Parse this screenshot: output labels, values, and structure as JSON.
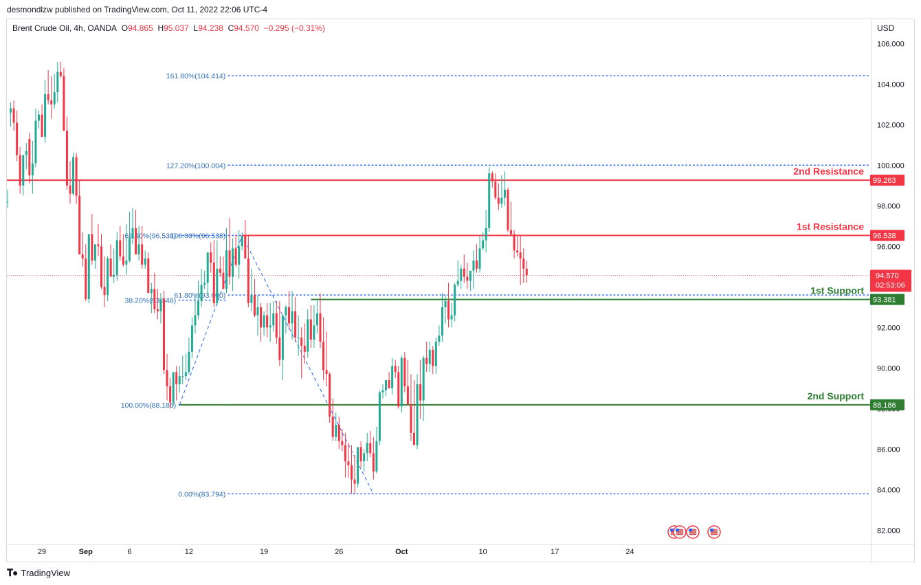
{
  "header": {
    "published": "desmondlzw published on TradingView.com, Oct 11, 2022 22:06 UTC-4",
    "symbol": "Brent Crude Oil, 4h, OANDA",
    "o_label": "O",
    "o_value": "94.865",
    "h_label": "H",
    "h_value": "95.037",
    "l_label": "L",
    "l_value": "94.238",
    "c_label": "C",
    "c_value": "94.570",
    "change": "−0.295 (−0.31%)",
    "currency": "USD"
  },
  "footer": {
    "brand": "TradingView",
    "logo_icon": "tradingview-logo-icon"
  },
  "colors": {
    "up": "#22ab94",
    "down": "#f23645",
    "resistance": "#f23645",
    "support": "#2e7d32",
    "fib": "#2962ff",
    "fib_text": "#2f6fb5",
    "price_line": "#f23645"
  },
  "chart_data": {
    "type": "candlestick",
    "title": "",
    "ylim": [
      81.3,
      107.2
    ],
    "y_ticks": [
      82,
      84,
      86,
      88,
      90,
      92,
      94,
      96,
      98,
      100,
      102,
      104,
      106
    ],
    "y_tick_labels": [
      "82.000",
      "84.000",
      "86.000",
      "88.000",
      "90.000",
      "92.000",
      "94.000",
      "96.000",
      "98.000",
      "100.000",
      "102.000",
      "104.000",
      "106.000"
    ],
    "x_ticks": [
      {
        "label": "29",
        "bar": 11
      },
      {
        "label": "Sep",
        "bar": 25
      },
      {
        "label": "6",
        "bar": 39
      },
      {
        "label": "12",
        "bar": 58
      },
      {
        "label": "19",
        "bar": 82
      },
      {
        "label": "26",
        "bar": 106
      },
      {
        "label": "Oct",
        "bar": 126
      },
      {
        "label": "10",
        "bar": 152
      },
      {
        "label": "17",
        "bar": 175
      },
      {
        "label": "24",
        "bar": 199
      }
    ],
    "candles": {
      "open": [
        98.2,
        102.6,
        102.8,
        102.1,
        100.5,
        99.0,
        100.5,
        101.3,
        99.5,
        100.1,
        102.2,
        102.5,
        101.4,
        103.5,
        103.2,
        103.0,
        103.6,
        104.6,
        104.4,
        101.7,
        99.0,
        98.6,
        100.4,
        98.5,
        95.6,
        95.4,
        93.4,
        96.6,
        95.3,
        96.1,
        96.0,
        94.0,
        93.6,
        95.4,
        94.5,
        94.6,
        96.3,
        95.5,
        95.1,
        95.3,
        96.4,
        96.9,
        95.6,
        96.1,
        95.1,
        95.4,
        93.7,
        93.9,
        92.9,
        92.8,
        93.4,
        89.9,
        89.1,
        88.3,
        89.8,
        89.2,
        89.6,
        89.6,
        89.8,
        90.8,
        92.1,
        92.6,
        93.3,
        94.1,
        94.2,
        95.7,
        95.2,
        93.2,
        94.9,
        94.7,
        93.9,
        95.8,
        94.5,
        95.9,
        95.1,
        96.0,
        96.5,
        95.4,
        93.2,
        93.6,
        92.6,
        93.0,
        92.0,
        92.6,
        92.0,
        92.1,
        92.7,
        91.5,
        90.4,
        92.6,
        93.0,
        92.2,
        92.8,
        91.5,
        91.5,
        91.1,
        90.8,
        92.4,
        91.4,
        92.1,
        92.7,
        91.3,
        89.9,
        89.7,
        87.6,
        86.6,
        87.2,
        86.4,
        86.2,
        85.4,
        85.2,
        84.5,
        84.3,
        86.1,
        85.4,
        85.8,
        86.3,
        85.8,
        84.9,
        86.4,
        88.8,
        88.9,
        89.4,
        89.0,
        90.1,
        89.8,
        88.1,
        90.5,
        89.1,
        88.2,
        86.8,
        86.2,
        89.2,
        88.4,
        90.5,
        90.2,
        90.9,
        90.1,
        91.3,
        91.6,
        93.0,
        93.3,
        92.4,
        92.6,
        94.1,
        94.3,
        94.9,
        94.5,
        94.3,
        94.8,
        95.3,
        94.9,
        95.9,
        96.3,
        96.9,
        99.6,
        99.2,
        98.4,
        98.1,
        98.4,
        98.8,
        96.8,
        96.6,
        95.8,
        95.7,
        95.4,
        94.9
      ],
      "high": [
        98.8,
        103.1,
        103.2,
        102.7,
        100.9,
        99.7,
        101.1,
        101.6,
        101.2,
        102.8,
        102.7,
        103.0,
        104.2,
        104.7,
        104.4,
        104.5,
        105.1,
        105.1,
        104.8,
        102.4,
        100.2,
        100.6,
        100.6,
        99.3,
        96.7,
        96.1,
        96.6,
        97.6,
        96.1,
        97.1,
        96.6,
        95.5,
        95.5,
        96.1,
        95.9,
        96.7,
        97.0,
        96.6,
        97.1,
        97.7,
        97.9,
        97.8,
        97.0,
        97.0,
        95.8,
        95.7,
        94.2,
        94.7,
        93.9,
        93.7,
        93.8,
        90.7,
        89.5,
        89.0,
        90.1,
        90.1,
        90.6,
        90.7,
        91.5,
        92.5,
        93.6,
        94.3,
        94.9,
        94.8,
        95.3,
        96.2,
        96.3,
        96.3,
        95.5,
        95.5,
        96.9,
        97.4,
        96.4,
        96.6,
        96.8,
        96.7,
        97.3,
        96.5,
        94.9,
        94.4,
        93.6,
        93.2,
        92.8,
        93.2,
        93.2,
        93.3,
        93.3,
        93.3,
        92.3,
        93.1,
        93.8,
        93.8,
        93.5,
        92.6,
        92.0,
        92.2,
        92.9,
        93.1,
        93.1,
        93.4,
        93.7,
        92.5,
        91.8,
        89.8,
        88.5,
        87.8,
        87.6,
        87.0,
        86.8,
        86.3,
        86.2,
        85.7,
        85.8,
        86.4,
        86.0,
        86.8,
        86.9,
        86.6,
        87.1,
        88.9,
        89.2,
        89.3,
        89.8,
        90.5,
        90.4,
        90.1,
        90.6,
        90.8,
        90.4,
        89.7,
        89.4,
        89.7,
        90.4,
        90.6,
        91.3,
        91.3,
        91.1,
        91.5,
        92.1,
        93.7,
        93.6,
        94.2,
        93.2,
        94.2,
        95.3,
        95.1,
        95.6,
        95.2,
        94.8,
        95.8,
        96.1,
        96.5,
        96.7,
        97.8,
        99.9,
        99.7,
        99.6,
        99.1,
        99.5,
        99.7,
        98.9,
        98.2,
        96.8,
        96.5,
        96.5,
        95.9,
        95.3
      ],
      "low": [
        97.9,
        101.9,
        101.7,
        100.2,
        98.6,
        98.5,
        99.8,
        99.1,
        98.6,
        99.9,
        101.8,
        101.5,
        101.1,
        103.0,
        102.3,
        102.8,
        103.1,
        104.3,
        101.7,
        98.8,
        98.1,
        98.5,
        98.1,
        95.7,
        95.0,
        93.3,
        93.2,
        95.1,
        94.9,
        95.5,
        93.9,
        93.0,
        93.3,
        94.5,
        94.2,
        94.3,
        95.3,
        95.0,
        94.6,
        95.2,
        96.1,
        95.6,
        95.3,
        94.9,
        94.9,
        93.7,
        92.7,
        92.7,
        92.4,
        92.2,
        89.7,
        88.4,
        88.0,
        88.1,
        88.4,
        88.8,
        89.2,
        89.4,
        89.7,
        90.5,
        91.7,
        92.4,
        93.0,
        93.9,
        93.6,
        94.7,
        93.0,
        93.1,
        94.5,
        94.2,
        93.7,
        94.1,
        93.8,
        95.0,
        94.4,
        95.8,
        95.4,
        93.0,
        92.8,
        92.5,
        91.6,
        91.3,
        91.6,
        91.5,
        91.3,
        91.8,
        91.2,
        90.1,
        89.4,
        91.7,
        91.9,
        91.4,
        91.3,
        90.6,
        89.5,
        90.2,
        90.5,
        91.0,
        91.0,
        91.7,
        91.0,
        89.4,
        89.1,
        87.3,
        86.4,
        86.4,
        86.0,
        85.9,
        84.6,
        84.6,
        83.8,
        83.8,
        84.1,
        85.1,
        84.9,
        85.4,
        85.6,
        84.5,
        84.8,
        86.2,
        88.5,
        88.6,
        89.0,
        88.7,
        89.5,
        88.0,
        87.8,
        88.8,
        88.7,
        86.4,
        86.2,
        86.0,
        87.5,
        87.4,
        89.8,
        89.8,
        89.7,
        89.7,
        91.1,
        91.3,
        92.2,
        92.0,
        92.0,
        92.3,
        94.0,
        93.9,
        94.2,
        93.9,
        93.8,
        93.9,
        94.7,
        94.7,
        95.8,
        95.7,
        96.7,
        98.9,
        98.3,
        97.8,
        97.9,
        98.0,
        96.7,
        96.5,
        95.4,
        95.5,
        94.1,
        94.2,
        94.2
      ],
      "close": [
        98.2,
        102.8,
        102.1,
        100.5,
        99.0,
        100.5,
        100.7,
        99.5,
        100.1,
        102.2,
        102.5,
        101.4,
        103.5,
        103.2,
        103.0,
        103.6,
        104.6,
        104.4,
        101.7,
        99.0,
        98.6,
        100.4,
        98.5,
        95.6,
        95.4,
        93.4,
        96.6,
        95.3,
        96.1,
        96.0,
        94.0,
        93.6,
        95.4,
        94.5,
        94.6,
        96.3,
        95.5,
        95.1,
        95.3,
        96.4,
        96.9,
        95.6,
        96.1,
        95.1,
        95.4,
        93.7,
        93.9,
        92.9,
        92.8,
        93.4,
        89.9,
        89.1,
        88.3,
        89.8,
        89.2,
        89.6,
        89.6,
        89.8,
        90.8,
        92.1,
        92.6,
        93.3,
        94.1,
        94.2,
        95.7,
        95.2,
        93.2,
        94.9,
        94.7,
        93.9,
        95.8,
        94.5,
        95.9,
        95.1,
        96.0,
        96.5,
        95.4,
        93.2,
        93.6,
        92.6,
        93.0,
        92.0,
        92.6,
        92.0,
        92.1,
        92.7,
        91.5,
        90.4,
        92.6,
        93.0,
        92.2,
        92.8,
        91.5,
        91.5,
        91.1,
        90.8,
        92.4,
        91.4,
        92.1,
        92.7,
        91.3,
        89.9,
        89.7,
        87.6,
        86.6,
        87.2,
        86.4,
        86.2,
        85.4,
        85.2,
        84.5,
        84.3,
        86.1,
        85.4,
        85.8,
        86.3,
        85.8,
        84.9,
        86.4,
        88.8,
        88.9,
        89.4,
        89.0,
        90.1,
        89.8,
        88.1,
        90.5,
        89.1,
        88.2,
        86.8,
        86.2,
        89.2,
        88.4,
        90.5,
        90.2,
        90.9,
        90.1,
        91.3,
        91.6,
        93.0,
        93.3,
        92.4,
        92.6,
        94.1,
        94.3,
        94.9,
        94.5,
        94.3,
        94.8,
        95.3,
        94.9,
        95.9,
        96.3,
        96.9,
        99.6,
        99.2,
        98.4,
        98.1,
        98.4,
        98.8,
        96.8,
        96.6,
        95.8,
        95.7,
        95.4,
        94.9,
        94.57
      ]
    },
    "horizontal_levels": [
      {
        "label": "2nd Resistance",
        "value": 99.263,
        "value_label": "99.263",
        "color": "#f23645"
      },
      {
        "label": "1st Resistance",
        "value": 96.538,
        "value_label": "96.538",
        "color": "#f23645"
      },
      {
        "label": "1st Support",
        "value": 93.381,
        "value_label": "93.381",
        "color": "#2e7d32"
      },
      {
        "label": "2nd Support",
        "value": 88.186,
        "value_label": "88.186",
        "color": "#2e7d32"
      }
    ],
    "fib_extension": {
      "levels": [
        {
          "label": "161.80%(104.414)",
          "value": 104.414
        },
        {
          "label": "127.20%(100.004)",
          "value": 100.004
        },
        {
          "label": "100.00%(96.538)",
          "value": 96.538
        },
        {
          "label": "61.80%(93.600)",
          "value": 93.6
        },
        {
          "label": "0.00%(83.794)",
          "value": 83.794
        }
      ],
      "pivots": [
        {
          "bar": 55,
          "value": 88.186
        },
        {
          "bar": 75,
          "value": 96.538
        },
        {
          "bar": 117,
          "value": 83.794
        }
      ]
    },
    "fib_retracement": {
      "levels": [
        {
          "label": "61.80%(96.538)",
          "value": 96.538
        },
        {
          "label": "38.20%(93.348)",
          "value": 93.348
        },
        {
          "label": "100.00%(88.186)",
          "value": 88.186
        }
      ]
    },
    "current_price": {
      "value": 94.57,
      "label": "94.570",
      "countdown": "02:53:06"
    },
    "event_markers": [
      "us-flag-icon",
      "us-flag-icon",
      "us-flag-icon",
      "us-flag-icon"
    ]
  }
}
